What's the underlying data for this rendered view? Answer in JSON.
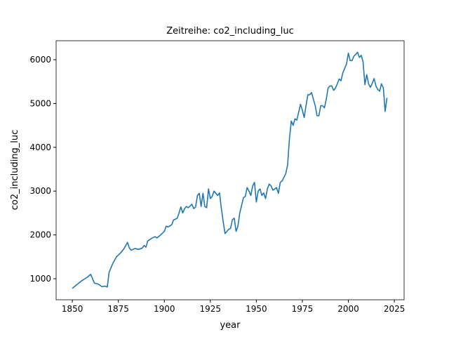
{
  "chart_data": {
    "type": "line",
    "title": "Zeitreihe: co2_including_luc",
    "x_label": "year",
    "y_label": "co2_including_luc",
    "x": [
      1850,
      1852,
      1855,
      1858,
      1860,
      1862,
      1864,
      1866,
      1868,
      1869,
      1870,
      1872,
      1874,
      1876,
      1878,
      1880,
      1881,
      1882,
      1884,
      1886,
      1888,
      1889,
      1890,
      1891,
      1893,
      1895,
      1896,
      1898,
      1900,
      1901,
      1902,
      1904,
      1905,
      1907,
      1908,
      1909,
      1910,
      1911,
      1912,
      1913,
      1915,
      1916,
      1917,
      1918,
      1919,
      1920,
      1921,
      1922,
      1923,
      1924,
      1925,
      1926,
      1927,
      1929,
      1930,
      1931,
      1932,
      1933,
      1935,
      1936,
      1937,
      1938,
      1939,
      1940,
      1941,
      1943,
      1944,
      1945,
      1946,
      1947,
      1948,
      1949,
      1950,
      1951,
      1952,
      1953,
      1954,
      1955,
      1956,
      1957,
      1958,
      1959,
      1960,
      1961,
      1962,
      1963,
      1964,
      1966,
      1967,
      1968,
      1969,
      1970,
      1971,
      1972,
      1973,
      1974,
      1975,
      1976,
      1977,
      1978,
      1979,
      1980,
      1981,
      1982,
      1983,
      1984,
      1985,
      1986,
      1987,
      1988,
      1989,
      1990,
      1991,
      1992,
      1993,
      1994,
      1995,
      1996,
      1997,
      1998,
      1999,
      2000,
      2001,
      2002,
      2003,
      2004,
      2005,
      2006,
      2007,
      2008,
      2009,
      2010,
      2011,
      2012,
      2013,
      2014,
      2015,
      2016,
      2017,
      2018,
      2019,
      2020,
      2021
    ],
    "series": [
      {
        "name": "co2_including_luc",
        "color": "#1f77b4",
        "values": [
          780,
          850,
          950,
          1030,
          1100,
          900,
          880,
          820,
          830,
          810,
          1150,
          1350,
          1500,
          1580,
          1680,
          1830,
          1700,
          1650,
          1690,
          1670,
          1700,
          1760,
          1720,
          1860,
          1920,
          1960,
          1930,
          2000,
          2080,
          2200,
          2180,
          2230,
          2340,
          2380,
          2500,
          2640,
          2500,
          2600,
          2650,
          2620,
          2700,
          2600,
          2640,
          2900,
          2950,
          2650,
          2950,
          2650,
          2620,
          3050,
          2830,
          2880,
          3000,
          2900,
          2960,
          2600,
          2300,
          2030,
          2130,
          2150,
          2350,
          2380,
          2080,
          2200,
          2500,
          2850,
          2880,
          3080,
          3000,
          2900,
          3120,
          3200,
          2750,
          3000,
          3050,
          2900,
          2960,
          2830,
          3050,
          3160,
          3120,
          3020,
          3050,
          3080,
          2950,
          3200,
          3230,
          3400,
          3600,
          4200,
          4600,
          4500,
          4650,
          4620,
          4800,
          4980,
          4850,
          4680,
          4950,
          5200,
          5200,
          5250,
          5100,
          4950,
          4720,
          4720,
          4950,
          4950,
          4900,
          5100,
          5350,
          5400,
          5400,
          5300,
          5350,
          5450,
          5560,
          5520,
          5700,
          5800,
          5900,
          6150,
          5980,
          5980,
          6080,
          6120,
          6170,
          6050,
          6100,
          5950,
          5430,
          5660,
          5450,
          5370,
          5460,
          5570,
          5400,
          5320,
          5280,
          5450,
          5360,
          4820,
          5130
        ]
      }
    ],
    "xlim": [
      1841.2,
      2030.3
    ],
    "ylim": [
      519,
      6433
    ],
    "xticks": [
      1850,
      1875,
      1900,
      1925,
      1950,
      1975,
      2000,
      2025
    ],
    "yticks": [
      1000,
      2000,
      3000,
      4000,
      5000,
      6000
    ],
    "grid": false
  }
}
